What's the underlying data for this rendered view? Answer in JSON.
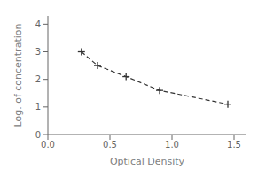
{
  "chart_data": {
    "type": "line",
    "xlabel": "Optical Density",
    "ylabel": "Log. of concentration",
    "x": [
      0.27,
      0.4,
      0.63,
      0.9,
      1.45
    ],
    "values": [
      3.0,
      2.5,
      2.1,
      1.6,
      1.1
    ],
    "xlim": [
      0,
      1.6
    ],
    "ylim": [
      0,
      4.3
    ],
    "xticks": [
      {
        "value": 0,
        "label": "0.0"
      },
      0.5,
      {
        "value": 1,
        "label": "1.0"
      },
      1.5
    ],
    "yticks": [
      0,
      1,
      2,
      3,
      4
    ],
    "color": "#333333",
    "marker": "plus",
    "line_style": "dashed",
    "grid": false
  }
}
